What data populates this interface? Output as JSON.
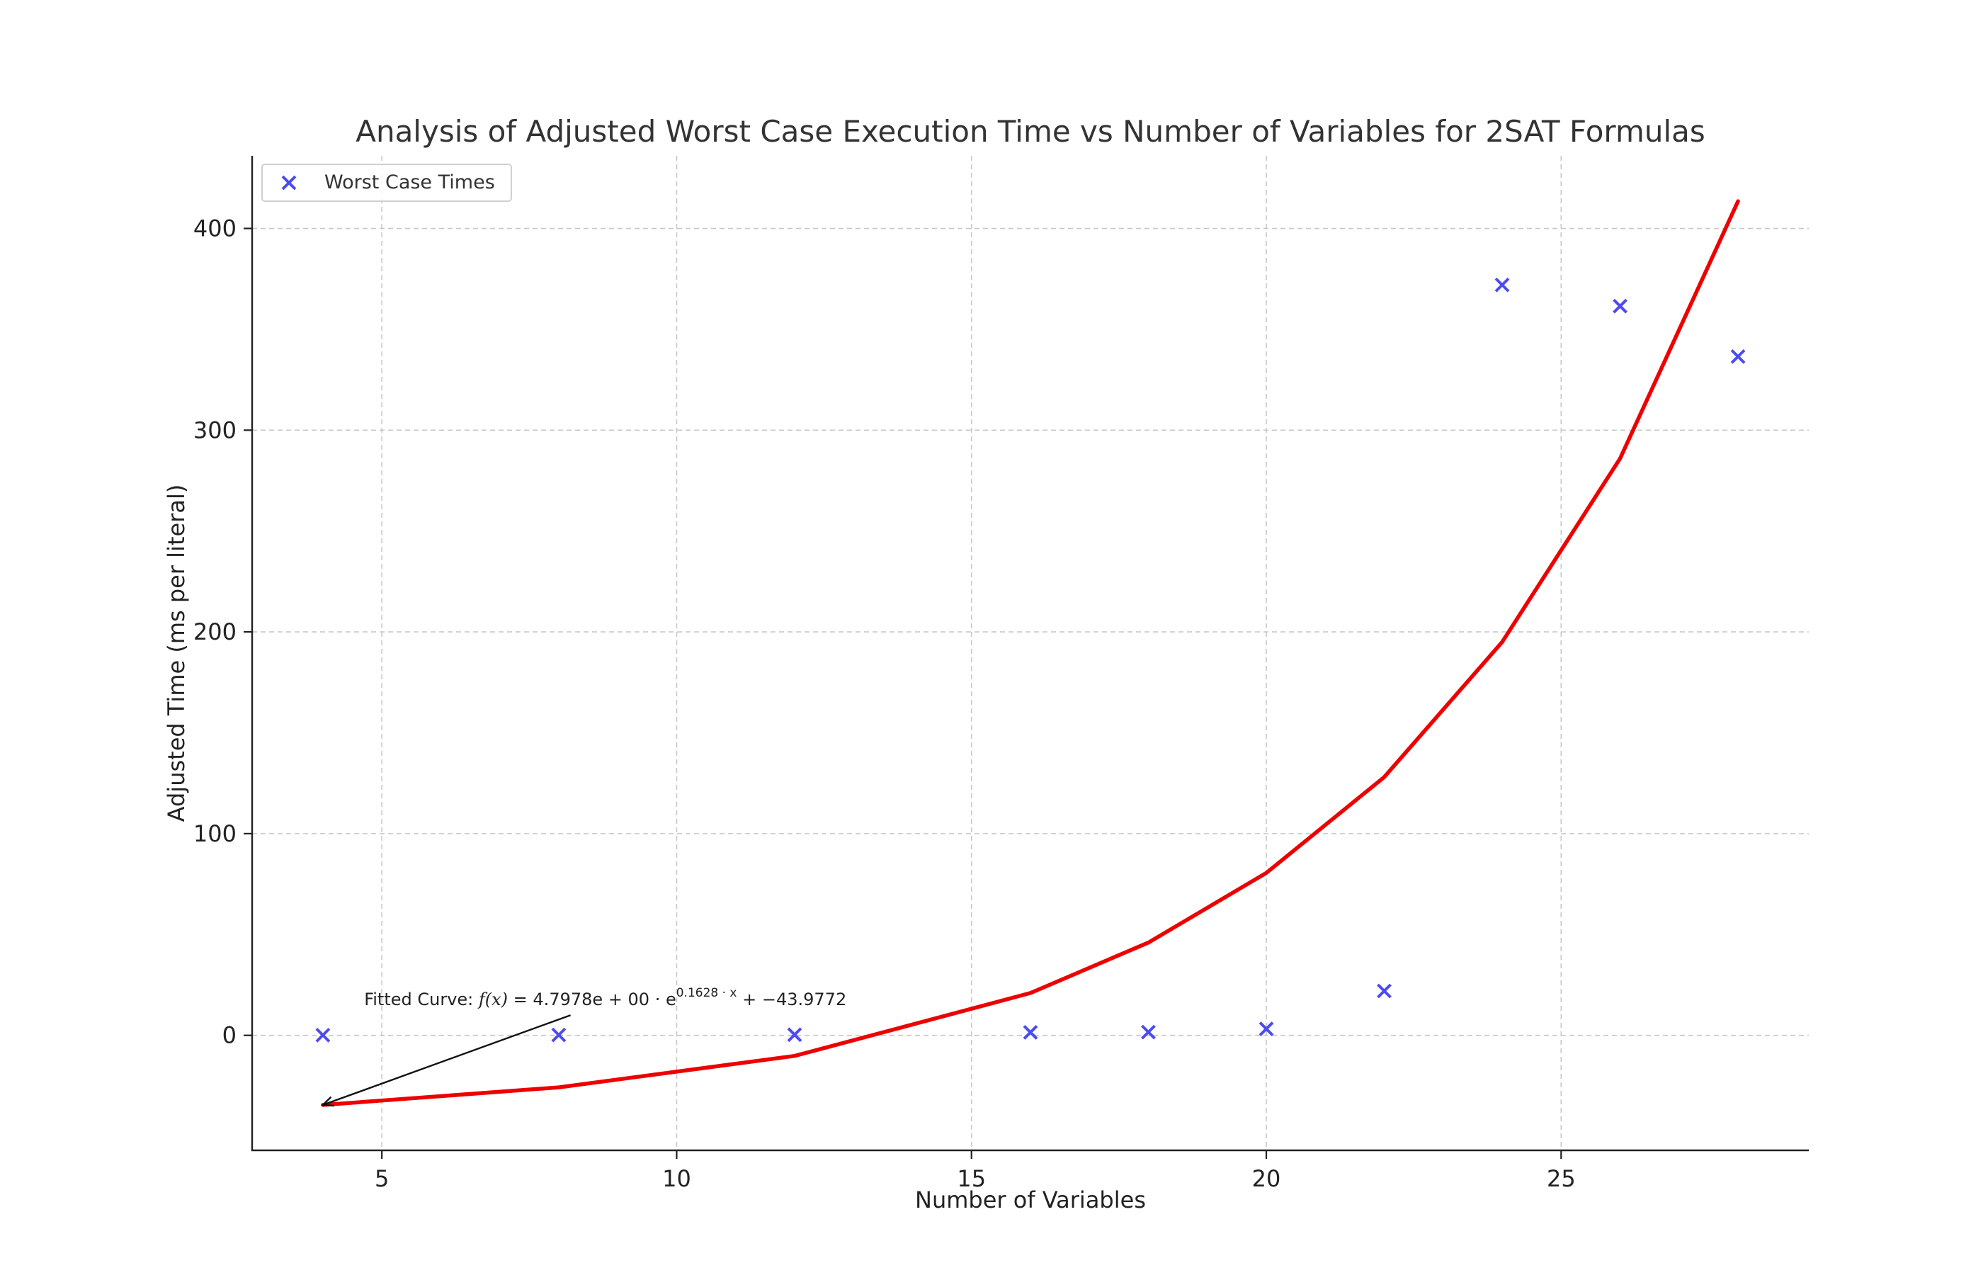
{
  "chart_data": {
    "type": "scatter",
    "title": "Analysis of Adjusted Worst Case Execution Time vs Number of Variables for 2SAT Formulas",
    "xlabel": "Number of Variables",
    "ylabel": "Adjusted Time (ms per literal)",
    "xlim": [
      2.8,
      29.2
    ],
    "ylim": [
      -57,
      436
    ],
    "xticks": [
      5,
      10,
      15,
      20,
      25
    ],
    "yticks": [
      0,
      100,
      200,
      300,
      400
    ],
    "grid": true,
    "legend_position": "top-left",
    "series": [
      {
        "name": "Worst Case Times",
        "kind": "scatter",
        "marker": "x",
        "color": "#4b4bf0",
        "x": [
          4,
          8,
          12,
          16,
          18,
          20,
          22,
          24,
          26,
          28
        ],
        "y": [
          0.1,
          0.2,
          0.3,
          1.5,
          1.6,
          3.2,
          22.0,
          372.0,
          361.5,
          336.5
        ]
      },
      {
        "kind": "line",
        "color": "#ee0000",
        "x": [
          4,
          8,
          12,
          16,
          18,
          20,
          22,
          24,
          26,
          28
        ],
        "y": [
          -34.5,
          -25.8,
          -10.2,
          21.0,
          46.0,
          80.5,
          128.0,
          195.0,
          286.0,
          413.5
        ]
      }
    ],
    "annotation": {
      "text_prefix": "Fitted Curve: ",
      "formula_lhs": "f(x)",
      "formula_rhs_a": " = 4.7978e + 00 · e",
      "exponent": "0.1628 · x",
      "formula_rhs_b": " + −43.9772",
      "text_anchor": {
        "x": 4.7,
        "y": 15
      },
      "arrow_from": {
        "x": 8.2,
        "y": 10
      },
      "arrow_to": {
        "x": 4,
        "y": -34.5
      }
    }
  }
}
